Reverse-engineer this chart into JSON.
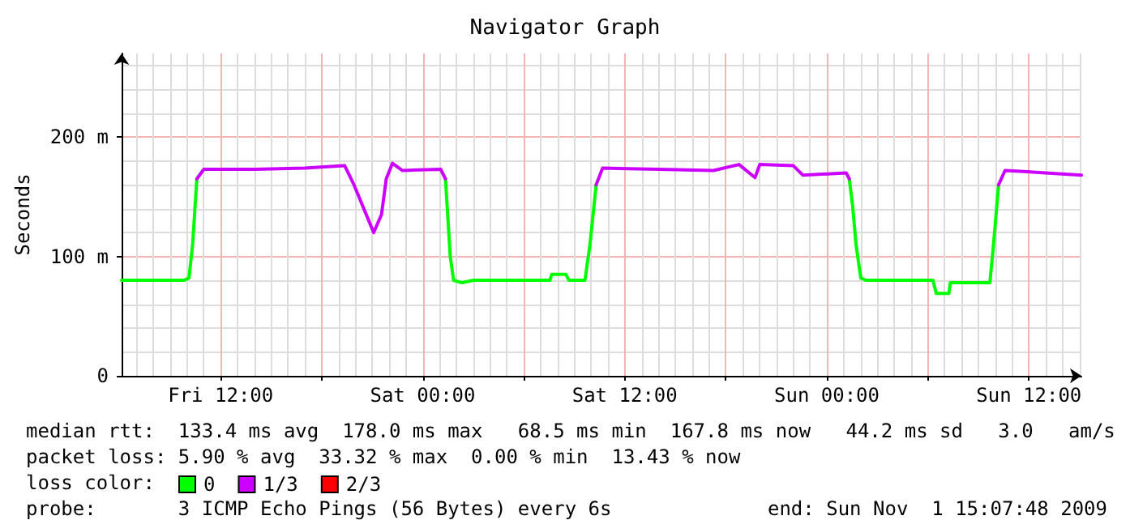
{
  "chart_data": {
    "type": "line",
    "title": "Navigator Graph",
    "ylabel": "Seconds",
    "x": [
      "2009-10-30T06:07",
      "2009-10-30T08:00",
      "2009-10-30T09:50",
      "2009-10-30T10:07",
      "2009-10-30T10:20",
      "2009-10-30T10:35",
      "2009-10-30T11:00",
      "2009-10-30T14:00",
      "2009-10-30T17:00",
      "2009-10-30T19:22",
      "2009-10-30T19:55",
      "2009-10-30T20:30",
      "2009-10-30T21:05",
      "2009-10-30T21:33",
      "2009-10-30T21:50",
      "2009-10-30T22:12",
      "2009-10-30T22:47",
      "2009-10-31T01:04",
      "2009-10-31T01:21",
      "2009-10-31T01:38",
      "2009-10-31T01:50",
      "2009-10-31T02:20",
      "2009-10-31T03:00",
      "2009-10-31T07:33",
      "2009-10-31T07:40",
      "2009-10-31T08:30",
      "2009-10-31T08:41",
      "2009-10-31T09:38",
      "2009-10-31T09:56",
      "2009-10-31T10:18",
      "2009-10-31T10:41",
      "2009-10-31T14:00",
      "2009-10-31T17:16",
      "2009-10-31T18:47",
      "2009-10-31T19:44",
      "2009-10-31T20:01",
      "2009-10-31T22:01",
      "2009-10-31T22:35",
      "2009-11-01T01:09",
      "2009-11-01T01:20",
      "2009-11-01T01:32",
      "2009-11-01T01:44",
      "2009-11-01T02:01",
      "2009-11-01T02:18",
      "2009-11-01T06:18",
      "2009-11-01T06:30",
      "2009-11-01T07:15",
      "2009-11-01T07:20",
      "2009-11-01T09:41",
      "2009-11-01T09:54",
      "2009-11-01T10:12",
      "2009-11-01T10:35",
      "2009-11-01T13:00",
      "2009-11-01T15:07"
    ],
    "series": [
      {
        "name": "0",
        "color": "#00ff00",
        "values": [
          80,
          80,
          80,
          82,
          110,
          165,
          null,
          null,
          null,
          null,
          null,
          null,
          null,
          null,
          null,
          null,
          null,
          null,
          165,
          100,
          80,
          78,
          80,
          80,
          85,
          85,
          80,
          80,
          110,
          160,
          null,
          null,
          null,
          null,
          null,
          null,
          null,
          null,
          null,
          165,
          142,
          110,
          82,
          80,
          80,
          69,
          69,
          78,
          78,
          110,
          160,
          null,
          null,
          null
        ]
      },
      {
        "name": "1/3",
        "color": "#cc00ff",
        "values": [
          null,
          null,
          null,
          null,
          null,
          165,
          173,
          173,
          174,
          176,
          160,
          140,
          120,
          135,
          165,
          178,
          172,
          173,
          165,
          null,
          null,
          null,
          null,
          null,
          null,
          null,
          null,
          null,
          null,
          160,
          174,
          173,
          172,
          177,
          166,
          177,
          176,
          168,
          170,
          165,
          null,
          null,
          null,
          null,
          null,
          null,
          null,
          null,
          null,
          null,
          160,
          172,
          170,
          168
        ]
      },
      {
        "name": "2/3",
        "color": "#ff0000",
        "values": [
          null,
          null,
          null,
          null,
          null,
          null,
          null,
          null,
          null,
          null,
          null,
          null,
          null,
          null,
          null,
          null,
          null,
          null,
          null,
          null,
          null,
          null,
          null,
          null,
          null,
          null,
          null,
          null,
          null,
          null,
          null,
          null,
          null,
          null,
          null,
          null,
          null,
          null,
          null,
          null,
          null,
          null,
          null,
          null,
          null,
          null,
          null,
          null,
          null,
          null,
          null,
          null,
          null,
          null
        ]
      }
    ],
    "xlim": [
      "2009-10-30T06:07",
      "2009-11-01T15:07"
    ],
    "xticks": [
      {
        "value": "2009-10-30T12:00",
        "label": "Fri 12:00"
      },
      {
        "value": "2009-10-30T18:00",
        "label": null
      },
      {
        "value": "2009-10-31T00:00",
        "label": "Sat 00:00"
      },
      {
        "value": "2009-10-31T06:00",
        "label": null
      },
      {
        "value": "2009-10-31T12:00",
        "label": "Sat 12:00"
      },
      {
        "value": "2009-10-31T18:00",
        "label": null
      },
      {
        "value": "2009-11-01T00:00",
        "label": "Sun 00:00"
      },
      {
        "value": "2009-11-01T06:00",
        "label": null
      },
      {
        "value": "2009-11-01T12:00",
        "label": "Sun 12:00"
      }
    ],
    "ylim": [
      0,
      270
    ],
    "yticks": [
      0,
      {
        "value": 20,
        "label": null
      },
      {
        "value": 40,
        "label": null
      },
      {
        "value": 60,
        "label": null
      },
      {
        "value": 80,
        "label": null
      },
      {
        "value": 100,
        "label": "100 m"
      },
      {
        "value": 120,
        "label": null
      },
      {
        "value": 140,
        "label": null
      },
      {
        "value": 160,
        "label": null
      },
      {
        "value": 180,
        "label": null
      },
      {
        "value": 200,
        "label": "200 m"
      },
      {
        "value": 220,
        "label": null
      },
      {
        "value": 240,
        "label": null
      },
      {
        "value": 260,
        "label": null
      }
    ],
    "grid": true,
    "legend": "bottom left",
    "marker": "none",
    "line_style": "solid",
    "annotations": [
      "median rtt:  133.4 ms avg  178.0 ms max   68.5 ms min  167.8 ms now   44.2 ms sd   3.0   am/s",
      "packet loss: 5.90 % avg  33.32 % max  0.00 % min  13.43 % now",
      "loss color:",
      "probe:       3 ICMP Echo Pings (56 Bytes) every 6s",
      "end: Sun Nov  1 15:07:48 2009"
    ]
  }
}
